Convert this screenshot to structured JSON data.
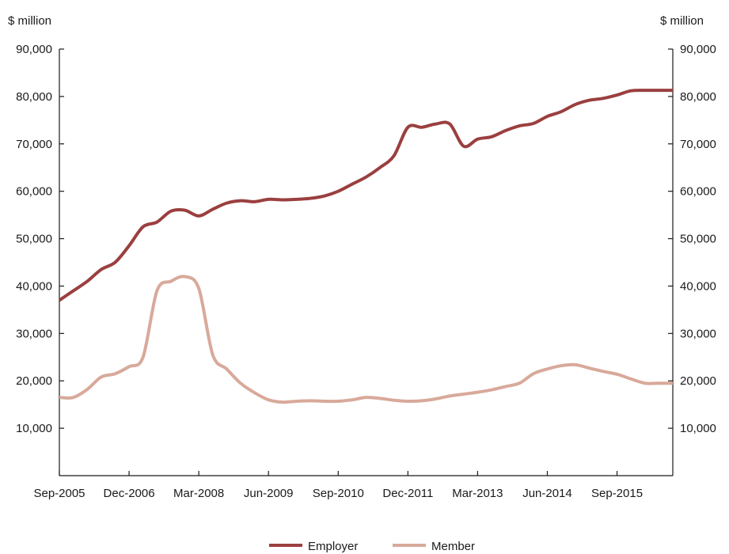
{
  "chart_data": {
    "type": "line",
    "left_unit": "$ million",
    "right_unit": "$ million",
    "ylim": [
      0,
      90000
    ],
    "y_ticks": [
      10000,
      20000,
      30000,
      40000,
      50000,
      60000,
      70000,
      80000,
      90000
    ],
    "y_tick_labels": [
      "10,000",
      "20,000",
      "30,000",
      "40,000",
      "50,000",
      "60,000",
      "70,000",
      "80,000",
      "90,000"
    ],
    "x_tick_labels": [
      "Sep-2005",
      "Dec-2006",
      "Mar-2008",
      "Jun-2009",
      "Sep-2010",
      "Dec-2011",
      "Mar-2013",
      "Jun-2014",
      "Sep-2015"
    ],
    "x_tick_quarters": [
      0,
      5,
      10,
      15,
      20,
      25,
      30,
      35,
      40
    ],
    "x_range_quarters": [
      0,
      44
    ],
    "grid": false,
    "legend_position": "bottom-center",
    "colors": {
      "employer": "#9b3f3f",
      "member": "#d8a99a"
    },
    "series": [
      {
        "name": "Employer",
        "x": [
          0,
          1,
          2,
          3,
          4,
          5,
          6,
          7,
          8,
          9,
          10,
          11,
          12,
          13,
          14,
          15,
          16,
          17,
          18,
          19,
          20,
          21,
          22,
          23,
          24,
          25,
          26,
          27,
          28,
          29,
          30,
          31,
          32,
          33,
          34,
          35,
          36,
          37,
          38,
          39,
          40,
          41,
          42,
          43,
          44
        ],
        "values": [
          37000,
          39000,
          41000,
          43500,
          45000,
          48500,
          52500,
          53500,
          55800,
          56000,
          54800,
          56200,
          57500,
          58000,
          57800,
          58300,
          58200,
          58300,
          58500,
          59000,
          60000,
          61500,
          63000,
          65000,
          67500,
          73500,
          73500,
          74200,
          74200,
          69500,
          71000,
          71500,
          72800,
          73800,
          74300,
          75800,
          76800,
          78300,
          79200,
          79600,
          80300,
          81200,
          81300,
          81300,
          81300
        ]
      },
      {
        "name": "Member",
        "x": [
          0,
          1,
          2,
          3,
          4,
          5,
          6,
          7,
          8,
          9,
          10,
          11,
          12,
          13,
          14,
          15,
          16,
          17,
          18,
          19,
          20,
          21,
          22,
          23,
          24,
          25,
          26,
          27,
          28,
          29,
          30,
          31,
          32,
          33,
          34,
          35,
          36,
          37,
          38,
          39,
          40,
          41,
          42,
          43,
          44
        ],
        "values": [
          16500,
          16500,
          18200,
          20800,
          21500,
          23000,
          25000,
          39000,
          41000,
          42000,
          39500,
          25500,
          22500,
          19500,
          17500,
          16000,
          15500,
          15700,
          15800,
          15700,
          15700,
          16000,
          16500,
          16300,
          15900,
          15700,
          15800,
          16200,
          16800,
          17200,
          17600,
          18100,
          18800,
          19500,
          21500,
          22500,
          23200,
          23400,
          22700,
          22000,
          21400,
          20400,
          19500,
          19500,
          19500
        ]
      }
    ]
  }
}
